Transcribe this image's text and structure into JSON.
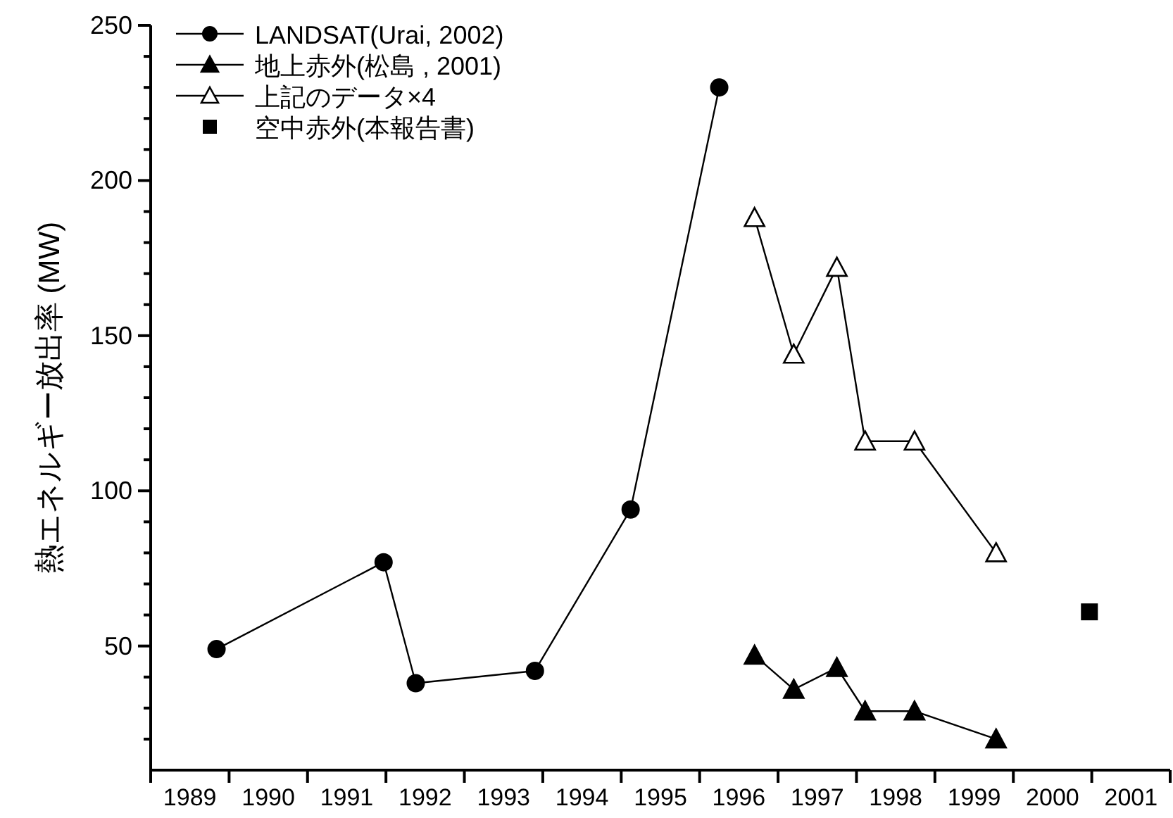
{
  "chart_data": {
    "type": "line",
    "ylabel": "熱エネルギー放出率 (MW)",
    "xlim": [
      1989,
      2002
    ],
    "xticks": [
      {
        "value": 1989,
        "label": null
      },
      {
        "value": 1989.5,
        "label": "1989"
      },
      {
        "value": 1990,
        "label": null
      },
      {
        "value": 1990.5,
        "label": "1990"
      },
      {
        "value": 1991,
        "label": null
      },
      {
        "value": 1991.5,
        "label": "1991"
      },
      {
        "value": 1992,
        "label": null
      },
      {
        "value": 1992.5,
        "label": "1992"
      },
      {
        "value": 1993,
        "label": null
      },
      {
        "value": 1993.5,
        "label": "1993"
      },
      {
        "value": 1994,
        "label": null
      },
      {
        "value": 1994.5,
        "label": "1994"
      },
      {
        "value": 1995,
        "label": null
      },
      {
        "value": 1995.5,
        "label": "1995"
      },
      {
        "value": 1996,
        "label": null
      },
      {
        "value": 1996.5,
        "label": "1996"
      },
      {
        "value": 1997,
        "label": null
      },
      {
        "value": 1997.5,
        "label": "1997"
      },
      {
        "value": 1998,
        "label": null
      },
      {
        "value": 1998.5,
        "label": "1998"
      },
      {
        "value": 1999,
        "label": null
      },
      {
        "value": 1999.5,
        "label": "1999"
      },
      {
        "value": 2000,
        "label": null
      },
      {
        "value": 2000.5,
        "label": "2000"
      },
      {
        "value": 2001,
        "label": null
      },
      {
        "value": 2001.5,
        "label": "2001"
      },
      {
        "value": 2002,
        "label": null
      }
    ],
    "ylim": [
      10,
      250
    ],
    "yticks": [
      {
        "value": 20,
        "label": null
      },
      {
        "value": 30,
        "label": null
      },
      {
        "value": 40,
        "label": null
      },
      {
        "value": 50,
        "label": "50"
      },
      {
        "value": 60,
        "label": null
      },
      {
        "value": 70,
        "label": null
      },
      {
        "value": 80,
        "label": null
      },
      {
        "value": 90,
        "label": null
      },
      {
        "value": 100,
        "label": "100"
      },
      {
        "value": 110,
        "label": null
      },
      {
        "value": 120,
        "label": null
      },
      {
        "value": 130,
        "label": null
      },
      {
        "value": 140,
        "label": null
      },
      {
        "value": 150,
        "label": "150"
      },
      {
        "value": 160,
        "label": null
      },
      {
        "value": 170,
        "label": null
      },
      {
        "value": 180,
        "label": null
      },
      {
        "value": 190,
        "label": null
      },
      {
        "value": 200,
        "label": "200"
      },
      {
        "value": 210,
        "label": null
      },
      {
        "value": 220,
        "label": null
      },
      {
        "value": 230,
        "label": null
      },
      {
        "value": 240,
        "label": null
      },
      {
        "value": 250,
        "label": "250"
      }
    ],
    "legend": "top left",
    "series": [
      {
        "name": "LANDSAT(Urai, 2002)",
        "color": "#000000",
        "marker": "circle",
        "x": [
          1989.84,
          1991.97,
          1992.38,
          1993.9,
          1995.12,
          1996.25
        ],
        "values": [
          49,
          77,
          38,
          42,
          94,
          230
        ]
      },
      {
        "name": "地上赤外(松島 , 2001)",
        "color": "#000000",
        "marker": "triangle",
        "x": [
          1996.7,
          1997.2,
          1997.75,
          1998.11,
          1998.74,
          1999.78
        ],
        "values": [
          47,
          36,
          43,
          29,
          29,
          20
        ]
      },
      {
        "name": "上記のデータ×4",
        "color": "#000000",
        "marker": "triangle",
        "x": [
          1996.7,
          1997.2,
          1997.75,
          1998.11,
          1998.74,
          1999.78
        ],
        "values": [
          188,
          144,
          172,
          116,
          116,
          80
        ]
      },
      {
        "name": "空中赤外(本報告書)",
        "color": "#000000",
        "marker": "square",
        "line_style": "none",
        "x": [
          2000.97
        ],
        "values": [
          61
        ]
      }
    ]
  }
}
